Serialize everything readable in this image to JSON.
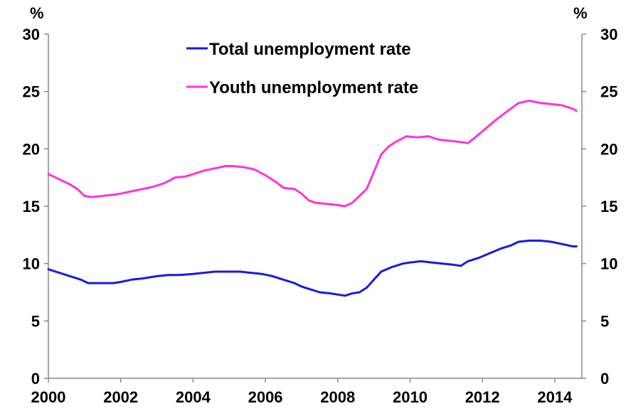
{
  "chart_data": {
    "type": "line",
    "title": "",
    "xlabel": "",
    "ylabel_left": "%",
    "ylabel_right": "%",
    "xlim": [
      2000,
      2014.75
    ],
    "ylim": [
      0,
      30
    ],
    "x_ticks": [
      2000,
      2002,
      2004,
      2006,
      2008,
      2010,
      2012,
      2014
    ],
    "x_tick_labels": [
      "2000",
      "2002",
      "2004",
      "2006",
      "2008",
      "2010",
      "2012",
      "2014"
    ],
    "y_ticks": [
      0,
      5,
      10,
      15,
      20,
      25,
      30
    ],
    "y_tick_labels": [
      "0",
      "5",
      "10",
      "15",
      "20",
      "25",
      "30"
    ],
    "grid": false,
    "legend_position": "top-center",
    "series": [
      {
        "name": "Total unemployment rate",
        "color": "#1a1adc",
        "points": [
          [
            2000.0,
            9.5
          ],
          [
            2000.3,
            9.2
          ],
          [
            2000.6,
            8.9
          ],
          [
            2000.9,
            8.6
          ],
          [
            2001.1,
            8.3
          ],
          [
            2001.5,
            8.3
          ],
          [
            2001.8,
            8.3
          ],
          [
            2002.0,
            8.4
          ],
          [
            2002.3,
            8.6
          ],
          [
            2002.6,
            8.7
          ],
          [
            2003.0,
            8.9
          ],
          [
            2003.3,
            9.0
          ],
          [
            2003.6,
            9.0
          ],
          [
            2004.0,
            9.1
          ],
          [
            2004.3,
            9.2
          ],
          [
            2004.6,
            9.3
          ],
          [
            2005.0,
            9.3
          ],
          [
            2005.3,
            9.3
          ],
          [
            2005.6,
            9.2
          ],
          [
            2005.9,
            9.1
          ],
          [
            2006.2,
            8.9
          ],
          [
            2006.5,
            8.6
          ],
          [
            2006.8,
            8.3
          ],
          [
            2007.0,
            8.0
          ],
          [
            2007.3,
            7.7
          ],
          [
            2007.5,
            7.5
          ],
          [
            2007.8,
            7.4
          ],
          [
            2008.0,
            7.3
          ],
          [
            2008.2,
            7.2
          ],
          [
            2008.4,
            7.4
          ],
          [
            2008.6,
            7.5
          ],
          [
            2008.8,
            7.9
          ],
          [
            2009.0,
            8.6
          ],
          [
            2009.2,
            9.3
          ],
          [
            2009.5,
            9.7
          ],
          [
            2009.8,
            10.0
          ],
          [
            2010.0,
            10.1
          ],
          [
            2010.3,
            10.2
          ],
          [
            2010.6,
            10.1
          ],
          [
            2010.9,
            10.0
          ],
          [
            2011.2,
            9.9
          ],
          [
            2011.4,
            9.8
          ],
          [
            2011.6,
            10.2
          ],
          [
            2011.9,
            10.5
          ],
          [
            2012.2,
            10.9
          ],
          [
            2012.5,
            11.3
          ],
          [
            2012.8,
            11.6
          ],
          [
            2013.0,
            11.9
          ],
          [
            2013.3,
            12.0
          ],
          [
            2013.6,
            12.0
          ],
          [
            2013.9,
            11.9
          ],
          [
            2014.2,
            11.7
          ],
          [
            2014.5,
            11.5
          ],
          [
            2014.6,
            11.5
          ]
        ]
      },
      {
        "name": "Youth unemployment rate",
        "color": "#ff33dd",
        "points": [
          [
            2000.0,
            17.8
          ],
          [
            2000.2,
            17.5
          ],
          [
            2000.4,
            17.2
          ],
          [
            2000.6,
            16.9
          ],
          [
            2000.8,
            16.5
          ],
          [
            2001.0,
            15.9
          ],
          [
            2001.2,
            15.8
          ],
          [
            2001.5,
            15.9
          ],
          [
            2001.8,
            16.0
          ],
          [
            2002.0,
            16.1
          ],
          [
            2002.3,
            16.3
          ],
          [
            2002.6,
            16.5
          ],
          [
            2002.9,
            16.7
          ],
          [
            2003.2,
            17.0
          ],
          [
            2003.5,
            17.5
          ],
          [
            2003.8,
            17.6
          ],
          [
            2004.0,
            17.8
          ],
          [
            2004.3,
            18.1
          ],
          [
            2004.6,
            18.3
          ],
          [
            2004.9,
            18.5
          ],
          [
            2005.1,
            18.5
          ],
          [
            2005.4,
            18.4
          ],
          [
            2005.7,
            18.2
          ],
          [
            2006.0,
            17.7
          ],
          [
            2006.3,
            17.1
          ],
          [
            2006.5,
            16.6
          ],
          [
            2006.8,
            16.5
          ],
          [
            2007.0,
            16.1
          ],
          [
            2007.2,
            15.5
          ],
          [
            2007.4,
            15.3
          ],
          [
            2007.7,
            15.2
          ],
          [
            2008.0,
            15.1
          ],
          [
            2008.2,
            15.0
          ],
          [
            2008.4,
            15.3
          ],
          [
            2008.6,
            15.9
          ],
          [
            2008.8,
            16.5
          ],
          [
            2009.0,
            18.0
          ],
          [
            2009.2,
            19.5
          ],
          [
            2009.4,
            20.2
          ],
          [
            2009.6,
            20.6
          ],
          [
            2009.9,
            21.1
          ],
          [
            2010.2,
            21.0
          ],
          [
            2010.5,
            21.1
          ],
          [
            2010.8,
            20.8
          ],
          [
            2011.1,
            20.7
          ],
          [
            2011.4,
            20.6
          ],
          [
            2011.6,
            20.5
          ],
          [
            2011.8,
            21.0
          ],
          [
            2012.1,
            21.8
          ],
          [
            2012.4,
            22.6
          ],
          [
            2012.7,
            23.3
          ],
          [
            2013.0,
            24.0
          ],
          [
            2013.3,
            24.2
          ],
          [
            2013.6,
            24.0
          ],
          [
            2013.9,
            23.9
          ],
          [
            2014.2,
            23.8
          ],
          [
            2014.5,
            23.5
          ],
          [
            2014.6,
            23.3
          ]
        ]
      }
    ]
  }
}
